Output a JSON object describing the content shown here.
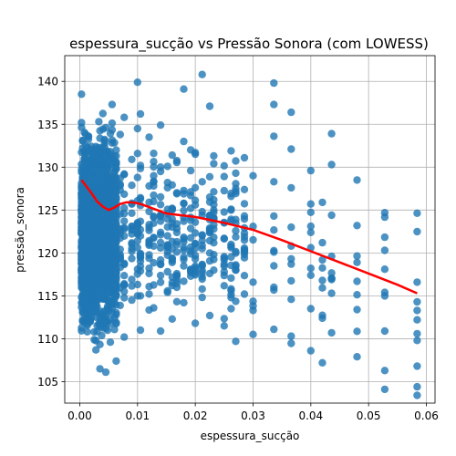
{
  "chart_data": {
    "type": "scatter",
    "title": "espessura_sucção vs Pressão Sonora (com LOWESS)",
    "xlabel": "espessura_sucção",
    "ylabel": "pressão_sonora",
    "xlim": [
      -0.0026,
      0.0615
    ],
    "ylim": [
      102.5,
      143.0
    ],
    "xticks": [
      0.0,
      0.01,
      0.02,
      0.03,
      0.04,
      0.05,
      0.06
    ],
    "xtick_labels": [
      "0.00",
      "0.01",
      "0.02",
      "0.03",
      "0.04",
      "0.05",
      "0.06"
    ],
    "yticks": [
      105,
      110,
      115,
      120,
      125,
      130,
      135,
      140
    ],
    "ytick_labels": [
      "105",
      "110",
      "115",
      "120",
      "125",
      "130",
      "135",
      "140"
    ],
    "grid": true,
    "scatter_color": "#1f77b4",
    "lowess_color": "#ff0000",
    "series": [
      {
        "kind": "points",
        "x_columns": [
          0.0003,
          0.0005,
          0.0008,
          0.001,
          0.0013,
          0.0015,
          0.0018,
          0.002,
          0.0023,
          0.0025,
          0.0028,
          0.003,
          0.0033,
          0.0035,
          0.0038,
          0.004,
          0.0043,
          0.0045,
          0.0048,
          0.005,
          0.0053,
          0.0056,
          0.006,
          0.0063,
          0.007,
          0.0077,
          0.009,
          0.01,
          0.0105,
          0.012,
          0.0128,
          0.014,
          0.0152,
          0.016,
          0.0168,
          0.018,
          0.0192,
          0.02,
          0.0212,
          0.0225,
          0.0232,
          0.025,
          0.0262,
          0.027,
          0.0285,
          0.03,
          0.0336,
          0.0366,
          0.04,
          0.042,
          0.0436,
          0.048,
          0.0528,
          0.0584
        ],
        "points": [
          [
            0.0003,
            138.5
          ],
          [
            0.0003,
            135.2
          ],
          [
            0.0005,
            133.1
          ],
          [
            0.0003,
            129.4
          ],
          [
            0.0005,
            126.8
          ],
          [
            0.0008,
            124.2
          ],
          [
            0.0008,
            121.6
          ],
          [
            0.001,
            119.0
          ],
          [
            0.001,
            116.3
          ],
          [
            0.0013,
            131.8
          ],
          [
            0.0013,
            127.6
          ],
          [
            0.0015,
            123.0
          ],
          [
            0.0015,
            118.4
          ],
          [
            0.0018,
            114.9
          ],
          [
            0.0018,
            112.6
          ],
          [
            0.002,
            129.9
          ],
          [
            0.002,
            125.5
          ],
          [
            0.0023,
            121.1
          ],
          [
            0.0023,
            117.7
          ],
          [
            0.0025,
            113.2
          ],
          [
            0.0025,
            110.8
          ],
          [
            0.0028,
            108.7
          ],
          [
            0.0028,
            132.4
          ],
          [
            0.003,
            127.1
          ],
          [
            0.003,
            122.5
          ],
          [
            0.0033,
            119.8
          ],
          [
            0.0033,
            115.6
          ],
          [
            0.0035,
            111.4
          ],
          [
            0.0035,
            106.5
          ],
          [
            0.0038,
            130.7
          ],
          [
            0.0038,
            126.2
          ],
          [
            0.004,
            124.0
          ],
          [
            0.004,
            120.4
          ],
          [
            0.0043,
            116.9
          ],
          [
            0.0043,
            112.1
          ],
          [
            0.0045,
            106.1
          ],
          [
            0.0045,
            134.6
          ],
          [
            0.0048,
            128.5
          ],
          [
            0.0048,
            125.0
          ],
          [
            0.005,
            121.9
          ],
          [
            0.005,
            118.2
          ],
          [
            0.0053,
            114.0
          ],
          [
            0.0053,
            109.6
          ],
          [
            0.0056,
            137.3
          ],
          [
            0.0056,
            131.0
          ],
          [
            0.0056,
            123.6
          ],
          [
            0.006,
            120.9
          ],
          [
            0.006,
            117.0
          ],
          [
            0.0063,
            112.8
          ],
          [
            0.0063,
            107.4
          ],
          [
            0.007,
            133.8
          ],
          [
            0.007,
            128.0
          ],
          [
            0.007,
            122.8
          ],
          [
            0.007,
            119.3
          ],
          [
            0.0077,
            135.8
          ],
          [
            0.0077,
            129.2
          ],
          [
            0.0077,
            124.6
          ],
          [
            0.0077,
            116.4
          ],
          [
            0.0077,
            110.2
          ],
          [
            0.009,
            130.9
          ],
          [
            0.009,
            125.8
          ],
          [
            0.009,
            120.2
          ],
          [
            0.009,
            114.5
          ],
          [
            0.01,
            139.9
          ],
          [
            0.01,
            134.5
          ],
          [
            0.01,
            128.8
          ],
          [
            0.01,
            122.2
          ],
          [
            0.01,
            115.0
          ],
          [
            0.0105,
            136.2
          ],
          [
            0.0105,
            130.2
          ],
          [
            0.0105,
            126.3
          ],
          [
            0.0105,
            119.5
          ],
          [
            0.0105,
            111.0
          ],
          [
            0.012,
            133.5
          ],
          [
            0.012,
            127.8
          ],
          [
            0.012,
            123.3
          ],
          [
            0.012,
            117.6
          ],
          [
            0.0128,
            131.6
          ],
          [
            0.0128,
            126.0
          ],
          [
            0.0128,
            120.8
          ],
          [
            0.0128,
            113.6
          ],
          [
            0.014,
            134.9
          ],
          [
            0.014,
            129.5
          ],
          [
            0.014,
            124.4
          ],
          [
            0.014,
            118.7
          ],
          [
            0.014,
            110.9
          ],
          [
            0.0152,
            128.2
          ],
          [
            0.0152,
            122.0
          ],
          [
            0.0152,
            115.4
          ],
          [
            0.016,
            131.4
          ],
          [
            0.016,
            125.2
          ],
          [
            0.016,
            119.1
          ],
          [
            0.016,
            112.3
          ],
          [
            0.0168,
            127.0
          ],
          [
            0.0168,
            121.3
          ],
          [
            0.0168,
            116.0
          ],
          [
            0.018,
            139.1
          ],
          [
            0.018,
            133.0
          ],
          [
            0.018,
            126.9
          ],
          [
            0.018,
            120.6
          ],
          [
            0.018,
            114.2
          ],
          [
            0.0192,
            129.6
          ],
          [
            0.0192,
            123.8
          ],
          [
            0.0192,
            117.3
          ],
          [
            0.02,
            131.7
          ],
          [
            0.02,
            125.6
          ],
          [
            0.02,
            119.7
          ],
          [
            0.02,
            111.8
          ],
          [
            0.0212,
            140.8
          ],
          [
            0.0212,
            128.3
          ],
          [
            0.0212,
            122.1
          ],
          [
            0.0212,
            115.8
          ],
          [
            0.0225,
            137.1
          ],
          [
            0.0225,
            126.5
          ],
          [
            0.0225,
            120.0
          ],
          [
            0.0225,
            112.7
          ],
          [
            0.0232,
            130.4
          ],
          [
            0.0232,
            124.1
          ],
          [
            0.0232,
            118.0
          ],
          [
            0.025,
            128.9
          ],
          [
            0.025,
            123.5
          ],
          [
            0.025,
            117.8
          ],
          [
            0.025,
            111.5
          ],
          [
            0.0262,
            131.9
          ],
          [
            0.0262,
            126.6
          ],
          [
            0.0262,
            121.0
          ],
          [
            0.0262,
            114.8
          ],
          [
            0.027,
            129.3
          ],
          [
            0.027,
            123.9
          ],
          [
            0.027,
            118.6
          ],
          [
            0.027,
            109.7
          ],
          [
            0.0285,
            127.4
          ],
          [
            0.0285,
            121.5
          ],
          [
            0.0285,
            115.2
          ],
          [
            0.03,
            129.0
          ],
          [
            0.03,
            123.1
          ],
          [
            0.03,
            116.6
          ],
          [
            0.03,
            110.5
          ],
          [
            0.0336,
            139.8
          ],
          [
            0.0336,
            137.3
          ],
          [
            0.0336,
            133.6
          ],
          [
            0.0336,
            128.3
          ],
          [
            0.0336,
            124.3
          ],
          [
            0.0336,
            120.1
          ],
          [
            0.0336,
            116.0
          ],
          [
            0.0336,
            111.1
          ],
          [
            0.0366,
            136.4
          ],
          [
            0.0366,
            132.1
          ],
          [
            0.0366,
            127.6
          ],
          [
            0.0366,
            123.0
          ],
          [
            0.0366,
            118.7
          ],
          [
            0.0366,
            114.6
          ],
          [
            0.0366,
            110.3
          ],
          [
            0.04,
            129.6
          ],
          [
            0.04,
            125.7
          ],
          [
            0.04,
            122.4
          ],
          [
            0.04,
            117.4
          ],
          [
            0.04,
            113.5
          ],
          [
            0.04,
            108.6
          ],
          [
            0.042,
            125.9
          ],
          [
            0.042,
            121.2
          ],
          [
            0.042,
            116.8
          ],
          [
            0.042,
            112.4
          ],
          [
            0.042,
            107.2
          ],
          [
            0.0436,
            133.9
          ],
          [
            0.0436,
            130.3
          ],
          [
            0.0436,
            124.4
          ],
          [
            0.0436,
            119.6
          ],
          [
            0.0436,
            115.3
          ],
          [
            0.0436,
            110.7
          ],
          [
            0.048,
            128.5
          ],
          [
            0.048,
            123.2
          ],
          [
            0.048,
            118.9
          ],
          [
            0.048,
            113.4
          ],
          [
            0.048,
            107.9
          ],
          [
            0.0528,
            124.7
          ],
          [
            0.0528,
            120.3
          ],
          [
            0.0528,
            115.4
          ],
          [
            0.0528,
            110.9
          ],
          [
            0.0528,
            106.3
          ],
          [
            0.0528,
            104.1
          ],
          [
            0.0584,
            116.6
          ],
          [
            0.0584,
            114.3
          ],
          [
            0.0584,
            112.2
          ],
          [
            0.0584,
            109.8
          ],
          [
            0.0584,
            106.8
          ],
          [
            0.0584,
            104.4
          ],
          [
            0.0584,
            103.4
          ]
        ]
      },
      {
        "kind": "lowess",
        "points": [
          [
            0.0003,
            128.5
          ],
          [
            0.001,
            127.9
          ],
          [
            0.002,
            127.0
          ],
          [
            0.003,
            126.0
          ],
          [
            0.004,
            125.4
          ],
          [
            0.005,
            125.0
          ],
          [
            0.006,
            125.3
          ],
          [
            0.007,
            125.7
          ],
          [
            0.008,
            125.9
          ],
          [
            0.009,
            125.9
          ],
          [
            0.01,
            125.8
          ],
          [
            0.011,
            125.6
          ],
          [
            0.013,
            125.1
          ],
          [
            0.015,
            124.6
          ],
          [
            0.02,
            124.2
          ],
          [
            0.025,
            123.5
          ],
          [
            0.03,
            122.7
          ],
          [
            0.035,
            121.5
          ],
          [
            0.04,
            120.2
          ],
          [
            0.045,
            118.9
          ],
          [
            0.05,
            117.6
          ],
          [
            0.055,
            116.3
          ],
          [
            0.0584,
            115.3
          ]
        ]
      }
    ]
  }
}
